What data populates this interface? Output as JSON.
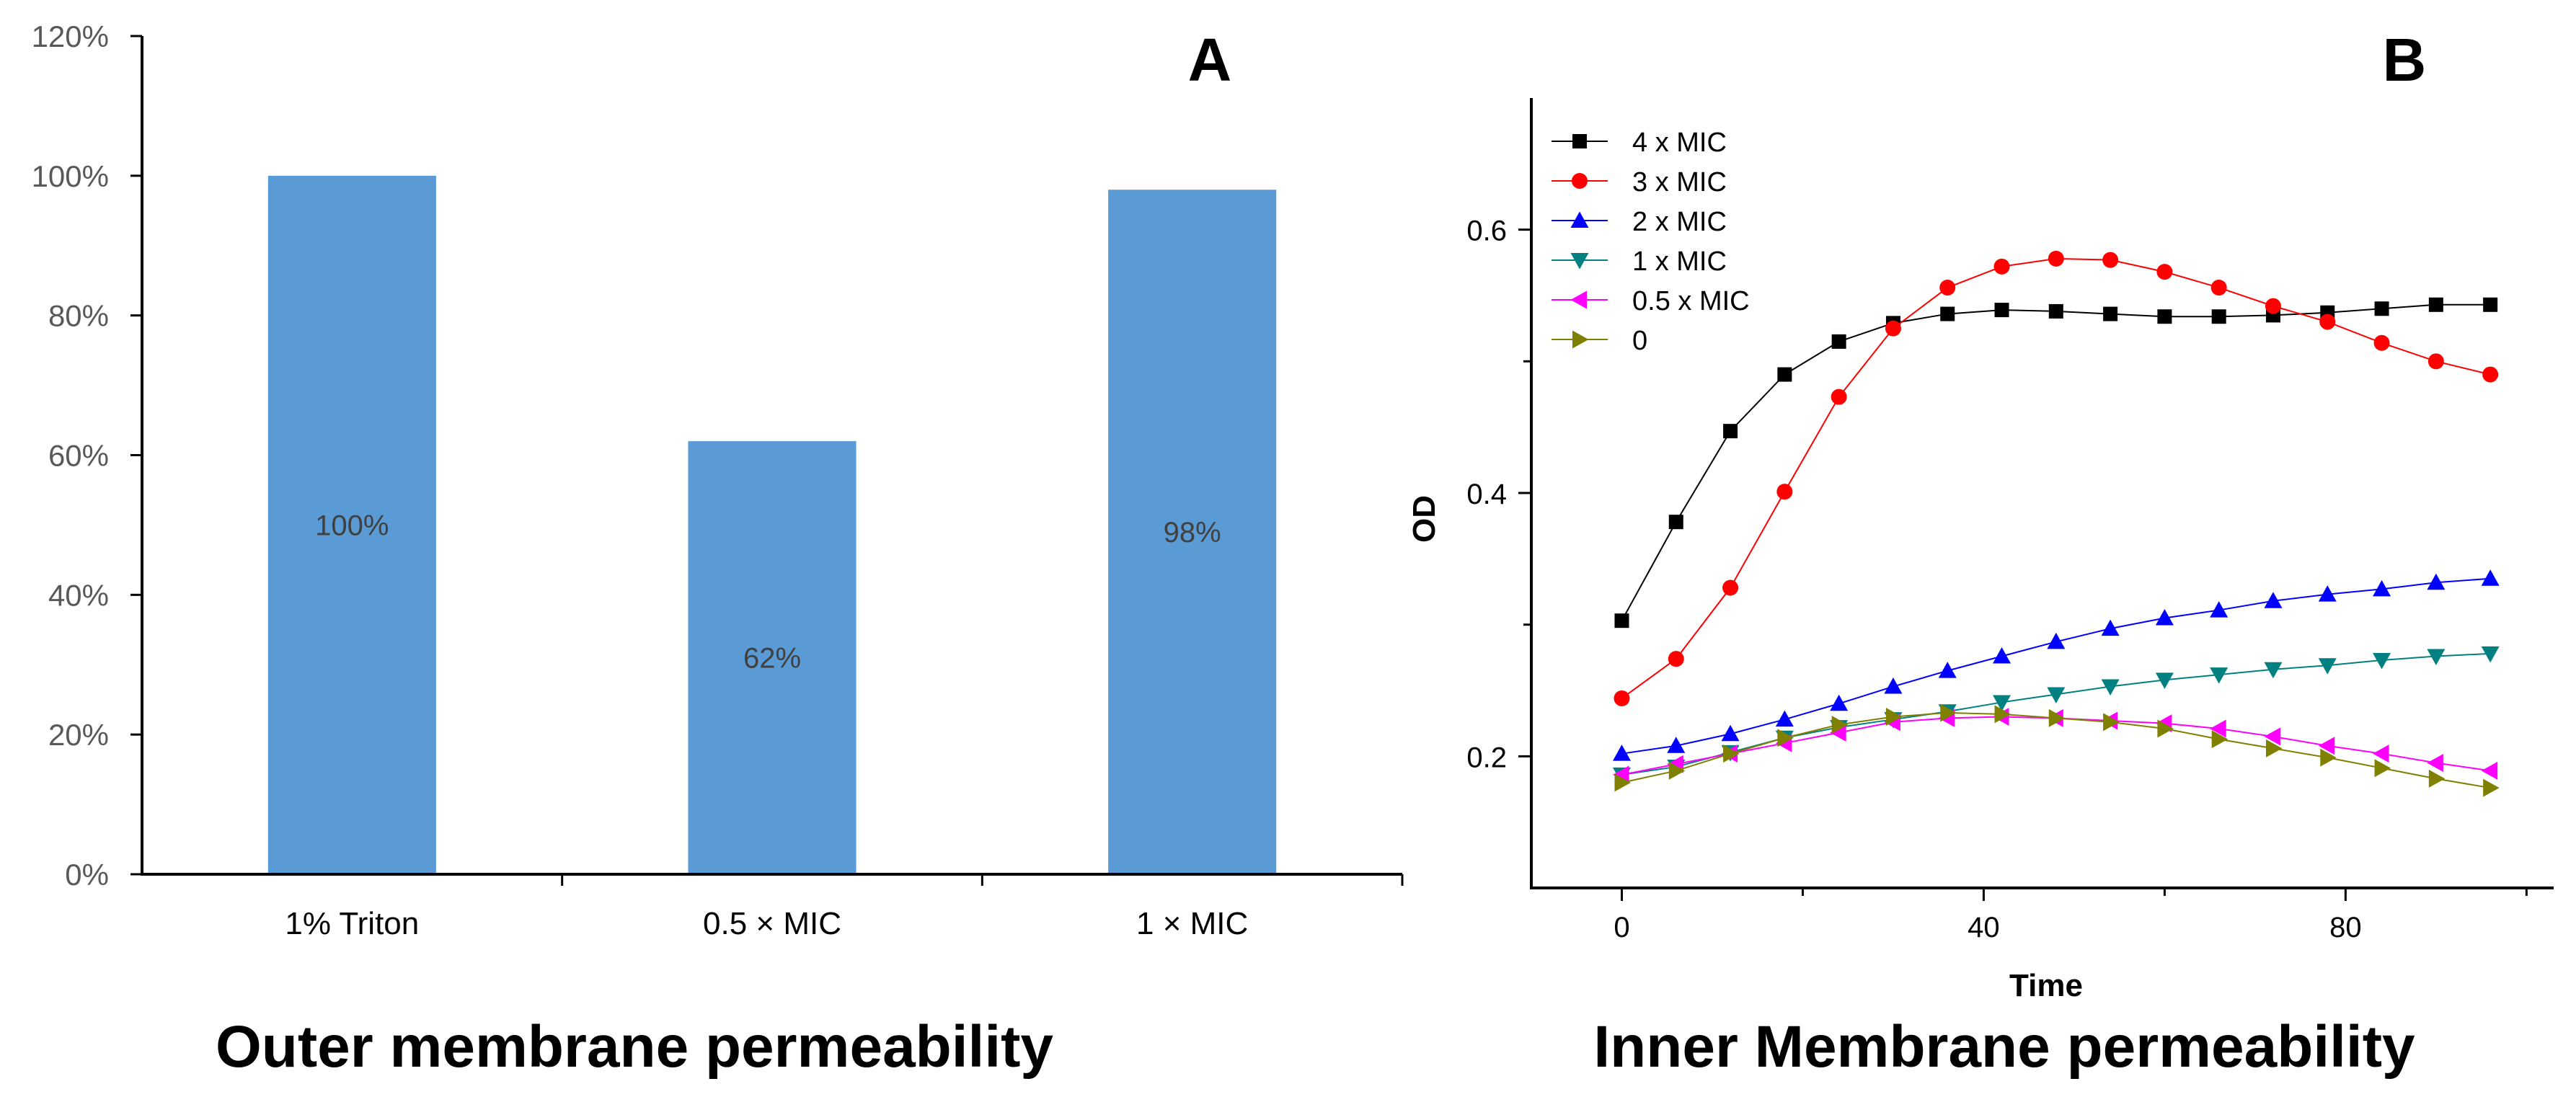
{
  "chart_data": [
    {
      "type": "bar",
      "panel_label": "A",
      "title": "Outer membrane permeability",
      "categories": [
        "1% Triton",
        "0.5 × MIC",
        "1 × MIC"
      ],
      "values": [
        100,
        62,
        98
      ],
      "data_labels": [
        "100%",
        "62%",
        "98%"
      ],
      "unit": "%",
      "ylim": [
        0,
        120
      ],
      "yticks": [
        0,
        20,
        40,
        60,
        80,
        100,
        120
      ],
      "ytick_labels": [
        "0%",
        "20%",
        "40%",
        "60%",
        "80%",
        "100%",
        "120%"
      ],
      "xlabel": "",
      "ylabel": "",
      "bar_color": "#5b9bd5",
      "grid": false
    },
    {
      "type": "line",
      "panel_label": "B",
      "title": "Inner Membrane permeability",
      "xlabel": "Time",
      "ylabel": "OD",
      "xlim": [
        -10,
        103
      ],
      "ylim": [
        0.1,
        0.7
      ],
      "xticks": [
        0,
        40,
        80
      ],
      "xtick_labels": [
        "0",
        "40",
        "80"
      ],
      "yticks": [
        0.2,
        0.4,
        0.6
      ],
      "ytick_labels": [
        "0.2",
        "0.4",
        "0.6"
      ],
      "x": [
        0,
        6,
        12,
        18,
        24,
        30,
        36,
        42,
        48,
        54,
        60,
        66,
        72,
        78,
        84,
        90,
        96
      ],
      "legend_position": "top-left",
      "grid": false,
      "series": [
        {
          "name": "4 x MIC",
          "color": "#000000",
          "marker": "square",
          "values": [
            0.303,
            0.378,
            0.447,
            0.49,
            0.515,
            0.529,
            0.536,
            0.539,
            0.538,
            0.536,
            0.534,
            0.534,
            0.535,
            0.537,
            0.54,
            0.543,
            0.543
          ]
        },
        {
          "name": "3 x MIC",
          "color": "#ff0000",
          "marker": "circle",
          "values": [
            0.244,
            0.274,
            0.328,
            0.401,
            0.473,
            0.525,
            0.556,
            0.572,
            0.578,
            0.577,
            0.568,
            0.556,
            0.542,
            0.53,
            0.514,
            0.5,
            0.49
          ]
        },
        {
          "name": "2 x MIC",
          "color": "#0000ff",
          "marker": "triangle-up",
          "values": [
            0.202,
            0.208,
            0.217,
            0.228,
            0.24,
            0.253,
            0.265,
            0.276,
            0.287,
            0.297,
            0.305,
            0.311,
            0.318,
            0.323,
            0.327,
            0.332,
            0.335
          ]
        },
        {
          "name": "1 x MIC",
          "color": "#008080",
          "marker": "triangle-down",
          "values": [
            0.186,
            0.192,
            0.203,
            0.214,
            0.222,
            0.228,
            0.234,
            0.241,
            0.247,
            0.253,
            0.258,
            0.262,
            0.266,
            0.269,
            0.273,
            0.276,
            0.278
          ]
        },
        {
          "name": "0.5 x MIC",
          "color": "#ff00ff",
          "marker": "triangle-left",
          "values": [
            0.186,
            0.194,
            0.202,
            0.21,
            0.218,
            0.226,
            0.229,
            0.23,
            0.229,
            0.227,
            0.225,
            0.221,
            0.215,
            0.208,
            0.202,
            0.195,
            0.189
          ]
        },
        {
          "name": "0",
          "color": "#808000",
          "marker": "triangle-right",
          "values": [
            0.18,
            0.189,
            0.202,
            0.214,
            0.224,
            0.23,
            0.233,
            0.232,
            0.229,
            0.226,
            0.221,
            0.213,
            0.206,
            0.199,
            0.191,
            0.183,
            0.176
          ]
        }
      ]
    }
  ]
}
